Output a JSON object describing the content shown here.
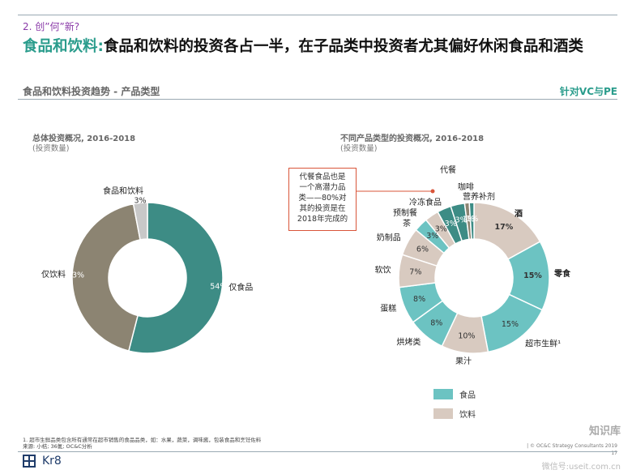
{
  "header": {
    "section": "2. 创”何”新?",
    "headline_accent": "食品和饮料:",
    "headline_rest": "食品和饮料的投资各占一半，在子品类中投资者尤其偏好休闲食品和酒类",
    "subtitle": "食品和饮料投资趋势 - 产品类型",
    "tag": "针对VC与PE"
  },
  "left_chart": {
    "title": "总体投资概况, 2016-2018",
    "subtitle": "(投资数量)"
  },
  "right_chart": {
    "title": "不同产品类型的投资概况, 2016-2018",
    "subtitle": "(投资数量)"
  },
  "callout": {
    "lines": [
      "代餐食品也是",
      "一个高潜力品",
      "类——80%对",
      "其的投资是在",
      "2018年完成的"
    ]
  },
  "legend": {
    "food": "食品",
    "beverage": "饮料"
  },
  "colors": {
    "food_dark": "#3d8c85",
    "food_light": "#6cc3c2",
    "beverage_dark": "#8c8472",
    "beverage_light": "#d8cac0",
    "other_gray": "#c8c8c8",
    "accent": "#2a9c8c",
    "callout_border": "#d9553a"
  },
  "chart_data": [
    {
      "type": "pie",
      "title": "总体投资概况, 2016-2018",
      "subtitle": "(投资数量)",
      "slices": [
        {
          "label": "仅食品",
          "value": 54,
          "pct_label": "54%",
          "group": "food"
        },
        {
          "label": "仅饮料",
          "value": 43,
          "pct_label": "43%",
          "group": "beverage"
        },
        {
          "label": "食品和饮料",
          "value": 3,
          "pct_label": "3%",
          "group": "other"
        }
      ]
    },
    {
      "type": "pie",
      "title": "不同产品类型的投资概况, 2016-2018",
      "subtitle": "(投资数量)",
      "slices": [
        {
          "label": "酒",
          "value": 17,
          "pct_label": "17%",
          "group": "beverage"
        },
        {
          "label": "零食",
          "value": 15,
          "pct_label": "15%",
          "group": "food"
        },
        {
          "label": "超市生鲜¹",
          "value": 15,
          "pct_label": "15%",
          "group": "food"
        },
        {
          "label": "果汁",
          "value": 10,
          "pct_label": "10%",
          "group": "beverage"
        },
        {
          "label": "烘烤类",
          "value": 8,
          "pct_label": "8%",
          "group": "food"
        },
        {
          "label": "蛋糕",
          "value": 8,
          "pct_label": "8%",
          "group": "food"
        },
        {
          "label": "软饮",
          "value": 7,
          "pct_label": "7%",
          "group": "beverage"
        },
        {
          "label": "奶制品",
          "value": 6,
          "pct_label": "6%",
          "group": "beverage"
        },
        {
          "label": "预制餐",
          "value": 3,
          "pct_label": "3%",
          "group": "food"
        },
        {
          "label": "茶",
          "value": 3,
          "pct_label": "3%",
          "group": "beverage"
        },
        {
          "label": "冷冻食品",
          "value": 3,
          "pct_label": "3%",
          "group": "food"
        },
        {
          "label": "代餐",
          "value": 3,
          "pct_label": "3%",
          "group": "food"
        },
        {
          "label": "咖啡",
          "value": 1,
          "pct_label": "1%",
          "group": "beverage"
        },
        {
          "label": "营养补剂",
          "value": 1,
          "pct_label": "1%",
          "group": "food"
        }
      ]
    }
  ],
  "footnote": {
    "line1": "1. 超市生鲜品类包含所有通常在超市销售的食品品类，如：水果，蔬菜，调味酱，包装食品和烹饪佐料",
    "line2": "来源: 小桔; 36氪; OC&C分析"
  },
  "footer": {
    "logo": "Kr8",
    "copyright": "| © OC&C Strategy Consultants 2019",
    "page": "17",
    "watermark": "知识库",
    "watermark2": "微信号:useit.com.cn"
  }
}
